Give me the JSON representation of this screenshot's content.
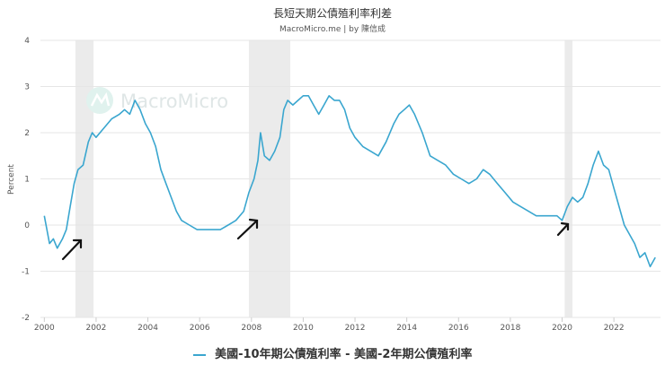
{
  "title": "長短天期公債殖利率利差",
  "subtitle": "MacroMicro.me | by 陳信成",
  "watermark": "MacroMicro",
  "chart_data": {
    "type": "line",
    "title": "長短天期公債殖利率利差",
    "ylabel": "Percent",
    "xlabel": "",
    "xlim": [
      1999.85,
      2023.8
    ],
    "ylim": [
      -2,
      4
    ],
    "yticks": [
      -2,
      -1,
      0,
      1,
      2,
      3,
      4
    ],
    "xticks": [
      2000,
      2002,
      2004,
      2006,
      2008,
      2010,
      2012,
      2014,
      2016,
      2018,
      2020,
      2022
    ],
    "grid": true,
    "legend_position": "bottom",
    "shaded_periods": [
      [
        2001.2,
        2001.9
      ],
      [
        2007.9,
        2009.5
      ],
      [
        2020.1,
        2020.4
      ]
    ],
    "series": [
      {
        "name": "美國-10年期公債殖利率 - 美國-2年期公債殖利率",
        "color": "#3aa6cf",
        "x": [
          2000.0,
          2000.1,
          2000.2,
          2000.35,
          2000.5,
          2000.7,
          2000.85,
          2001.0,
          2001.15,
          2001.3,
          2001.5,
          2001.7,
          2001.85,
          2002.0,
          2002.3,
          2002.6,
          2002.9,
          2003.1,
          2003.3,
          2003.5,
          2003.7,
          2003.9,
          2004.1,
          2004.3,
          2004.5,
          2004.7,
          2004.9,
          2005.1,
          2005.3,
          2005.6,
          2005.9,
          2006.2,
          2006.5,
          2006.8,
          2007.1,
          2007.4,
          2007.7,
          2007.9,
          2008.1,
          2008.25,
          2008.35,
          2008.5,
          2008.7,
          2008.9,
          2009.1,
          2009.25,
          2009.4,
          2009.6,
          2009.8,
          2010.0,
          2010.2,
          2010.4,
          2010.6,
          2010.8,
          2011.0,
          2011.2,
          2011.4,
          2011.6,
          2011.8,
          2012.0,
          2012.3,
          2012.6,
          2012.9,
          2013.2,
          2013.5,
          2013.7,
          2013.9,
          2014.1,
          2014.3,
          2014.6,
          2014.9,
          2015.2,
          2015.5,
          2015.8,
          2016.1,
          2016.4,
          2016.7,
          2016.95,
          2017.2,
          2017.5,
          2017.8,
          2018.1,
          2018.4,
          2018.7,
          2019.0,
          2019.3,
          2019.6,
          2019.8,
          2020.0,
          2020.2,
          2020.4,
          2020.6,
          2020.8,
          2021.0,
          2021.2,
          2021.4,
          2021.6,
          2021.8,
          2022.0,
          2022.2,
          2022.4,
          2022.6,
          2022.8,
          2023.0,
          2023.2,
          2023.4,
          2023.6
        ],
        "y": [
          0.2,
          -0.1,
          -0.4,
          -0.3,
          -0.5,
          -0.3,
          -0.1,
          0.4,
          0.9,
          1.2,
          1.3,
          1.8,
          2.0,
          1.9,
          2.1,
          2.3,
          2.4,
          2.5,
          2.4,
          2.7,
          2.5,
          2.2,
          2.0,
          1.7,
          1.2,
          0.9,
          0.6,
          0.3,
          0.1,
          0.0,
          -0.1,
          -0.1,
          -0.1,
          -0.1,
          0.0,
          0.1,
          0.3,
          0.7,
          1.0,
          1.4,
          2.0,
          1.5,
          1.4,
          1.6,
          1.9,
          2.5,
          2.7,
          2.6,
          2.7,
          2.8,
          2.8,
          2.6,
          2.4,
          2.6,
          2.8,
          2.7,
          2.7,
          2.5,
          2.1,
          1.9,
          1.7,
          1.6,
          1.5,
          1.8,
          2.2,
          2.4,
          2.5,
          2.6,
          2.4,
          2.0,
          1.5,
          1.4,
          1.3,
          1.1,
          1.0,
          0.9,
          1.0,
          1.2,
          1.1,
          0.9,
          0.7,
          0.5,
          0.4,
          0.3,
          0.2,
          0.2,
          0.2,
          0.2,
          0.1,
          0.4,
          0.6,
          0.5,
          0.6,
          0.9,
          1.3,
          1.6,
          1.3,
          1.2,
          0.8,
          0.4,
          0.0,
          -0.2,
          -0.4,
          -0.7,
          -0.6,
          -0.9,
          -0.7
        ]
      }
    ]
  },
  "legend": {
    "label": "美國-10年期公債殖利率 - 美國-2年期公債殖利率"
  }
}
